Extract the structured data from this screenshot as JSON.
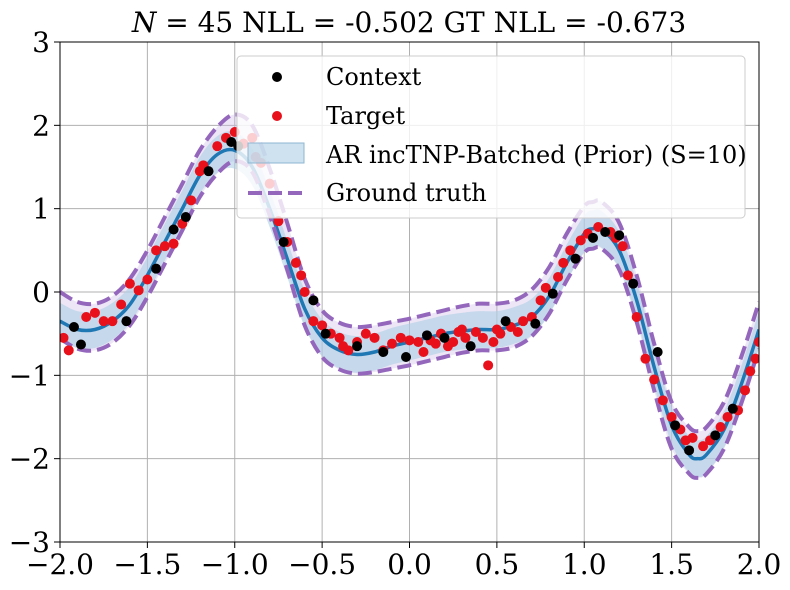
{
  "chart_data": {
    "type": "line",
    "title": "N = 45 NLL = -0.502 GT NLL = -0.673",
    "title_italic_prefix": "N",
    "title_rest": " = 45 NLL = -0.502 GT NLL = -0.673",
    "xlim": [
      -2.0,
      2.0
    ],
    "ylim": [
      -3,
      3
    ],
    "xticks": [
      -2.0,
      -1.5,
      -1.0,
      -0.5,
      0.0,
      0.5,
      1.0,
      1.5,
      2.0
    ],
    "xtick_labels": [
      "−2.0",
      "−1.5",
      "−1.0",
      "−0.5",
      "0.0",
      "0.5",
      "1.0",
      "1.5",
      "2.0"
    ],
    "yticks": [
      -3,
      -2,
      -1,
      0,
      1,
      2,
      3
    ],
    "ytick_labels": [
      "−3",
      "−2",
      "−1",
      "0",
      "1",
      "2",
      "3"
    ],
    "grid": true,
    "legend_position": "top-right",
    "legend": [
      {
        "label": "Context",
        "kind": "point",
        "color": "#000000"
      },
      {
        "label": "Target",
        "kind": "point",
        "color": "#e8101b"
      },
      {
        "label": "AR incTNP-Batched (Prior) (S=10)",
        "kind": "band",
        "color": "#aecfe5"
      },
      {
        "label": "Ground truth",
        "kind": "dashed",
        "color": "#9467bd"
      }
    ],
    "colors": {
      "context": "#000000",
      "target": "#e8101b",
      "model_mean": "#1f77b4",
      "model_band": "#aecfe5",
      "ground_truth": "#9467bd"
    },
    "model_mean": {
      "x": [
        -2.0,
        -1.9,
        -1.8,
        -1.7,
        -1.6,
        -1.5,
        -1.4,
        -1.3,
        -1.2,
        -1.1,
        -1.0,
        -0.9,
        -0.8,
        -0.7,
        -0.6,
        -0.5,
        -0.4,
        -0.3,
        -0.2,
        -0.1,
        0.0,
        0.1,
        0.2,
        0.3,
        0.4,
        0.5,
        0.6,
        0.7,
        0.8,
        0.9,
        1.0,
        1.05,
        1.1,
        1.2,
        1.3,
        1.4,
        1.5,
        1.6,
        1.65,
        1.7,
        1.8,
        1.9,
        2.0
      ],
      "y": [
        -0.35,
        -0.45,
        -0.45,
        -0.35,
        -0.15,
        0.2,
        0.6,
        1.0,
        1.4,
        1.65,
        1.7,
        1.5,
        1.0,
        0.4,
        -0.2,
        -0.55,
        -0.7,
        -0.75,
        -0.72,
        -0.65,
        -0.6,
        -0.55,
        -0.5,
        -0.47,
        -0.45,
        -0.45,
        -0.4,
        -0.3,
        -0.05,
        0.35,
        0.7,
        0.76,
        0.75,
        0.5,
        -0.1,
        -0.9,
        -1.6,
        -1.95,
        -2.0,
        -1.95,
        -1.65,
        -1.1,
        -0.45
      ]
    },
    "model_band_halfwidth": 0.22,
    "ground_truth": {
      "x": [
        -2.0,
        -1.9,
        -1.8,
        -1.7,
        -1.6,
        -1.5,
        -1.4,
        -1.3,
        -1.2,
        -1.1,
        -1.0,
        -0.9,
        -0.8,
        -0.7,
        -0.6,
        -0.5,
        -0.4,
        -0.3,
        -0.2,
        -0.1,
        0.0,
        0.1,
        0.2,
        0.3,
        0.4,
        0.5,
        0.6,
        0.7,
        0.8,
        0.9,
        1.0,
        1.05,
        1.1,
        1.2,
        1.3,
        1.4,
        1.5,
        1.6,
        1.65,
        1.7,
        1.8,
        1.9,
        2.0
      ],
      "y": [
        -0.28,
        -0.4,
        -0.42,
        -0.33,
        -0.12,
        0.22,
        0.62,
        1.02,
        1.42,
        1.7,
        1.85,
        1.72,
        1.2,
        0.55,
        -0.12,
        -0.5,
        -0.65,
        -0.7,
        -0.68,
        -0.64,
        -0.6,
        -0.55,
        -0.5,
        -0.45,
        -0.42,
        -0.42,
        -0.38,
        -0.25,
        0.02,
        0.42,
        0.75,
        0.8,
        0.8,
        0.55,
        -0.08,
        -0.9,
        -1.6,
        -1.9,
        -1.95,
        -1.9,
        -1.6,
        -1.05,
        -0.4
      ]
    },
    "ground_truth_band_halfwidth": 0.28,
    "context": {
      "x": [
        -1.92,
        -1.88,
        -1.62,
        -1.45,
        -1.35,
        -1.28,
        -1.15,
        -1.02,
        -0.98,
        -0.72,
        -0.55,
        -0.48,
        -0.3,
        -0.15,
        -0.02,
        0.1,
        0.2,
        0.35,
        0.55,
        0.72,
        0.82,
        0.95,
        1.05,
        1.12,
        1.2,
        1.28,
        1.42,
        1.52,
        1.6,
        1.75,
        1.85
      ],
      "y": [
        -0.42,
        -0.63,
        -0.35,
        0.28,
        0.75,
        0.9,
        1.45,
        1.8,
        1.75,
        0.6,
        -0.1,
        -0.5,
        -0.65,
        -0.72,
        -0.78,
        -0.52,
        -0.55,
        -0.65,
        -0.35,
        -0.38,
        -0.02,
        0.4,
        0.65,
        0.72,
        0.68,
        0.1,
        -0.72,
        -1.6,
        -1.9,
        -1.72,
        -1.4
      ]
    },
    "target": {
      "x": [
        -1.98,
        -1.95,
        -1.85,
        -1.8,
        -1.75,
        -1.7,
        -1.65,
        -1.6,
        -1.55,
        -1.5,
        -1.45,
        -1.4,
        -1.35,
        -1.3,
        -1.25,
        -1.2,
        -1.18,
        -1.1,
        -1.05,
        -1.0,
        -0.95,
        -0.9,
        -0.88,
        -0.85,
        -0.8,
        -0.75,
        -0.7,
        -0.65,
        -0.62,
        -0.6,
        -0.55,
        -0.5,
        -0.45,
        -0.4,
        -0.38,
        -0.35,
        -0.3,
        -0.25,
        -0.2,
        -0.15,
        -0.1,
        -0.05,
        0.0,
        0.05,
        0.08,
        0.12,
        0.15,
        0.18,
        0.22,
        0.25,
        0.28,
        0.3,
        0.32,
        0.38,
        0.42,
        0.45,
        0.48,
        0.5,
        0.52,
        0.58,
        0.62,
        0.65,
        0.7,
        0.75,
        0.78,
        0.85,
        0.88,
        0.92,
        0.98,
        1.02,
        1.08,
        1.15,
        1.18,
        1.22,
        1.25,
        1.3,
        1.35,
        1.4,
        1.45,
        1.5,
        1.55,
        1.58,
        1.62,
        1.68,
        1.72,
        1.78,
        1.82,
        1.88,
        1.92,
        1.95,
        1.98,
        2.0
      ],
      "y": [
        -0.55,
        -0.7,
        -0.3,
        -0.25,
        -0.35,
        -0.35,
        -0.15,
        0.1,
        0.02,
        0.15,
        0.5,
        0.55,
        0.58,
        0.82,
        1.1,
        1.45,
        1.52,
        1.75,
        1.85,
        1.92,
        1.78,
        1.85,
        1.62,
        1.55,
        1.3,
        0.85,
        0.6,
        0.35,
        0.2,
        0.0,
        -0.35,
        -0.4,
        -0.5,
        -0.55,
        -0.65,
        -0.7,
        -0.6,
        -0.5,
        -0.55,
        -0.7,
        -0.62,
        -0.55,
        -0.58,
        -0.6,
        -0.72,
        -0.58,
        -0.62,
        -0.5,
        -0.65,
        -0.6,
        -0.48,
        -0.45,
        -0.55,
        -0.48,
        -0.55,
        -0.88,
        -0.6,
        -0.45,
        -0.5,
        -0.42,
        -0.48,
        -0.35,
        -0.3,
        -0.1,
        0.05,
        0.18,
        0.35,
        0.5,
        0.62,
        0.7,
        0.78,
        0.72,
        0.65,
        0.55,
        0.2,
        -0.3,
        -0.8,
        -1.05,
        -1.3,
        -1.5,
        -1.65,
        -1.78,
        -1.75,
        -1.85,
        -1.78,
        -1.62,
        -1.5,
        -1.42,
        -1.18,
        -0.95,
        -0.8,
        -0.6
      ]
    }
  }
}
